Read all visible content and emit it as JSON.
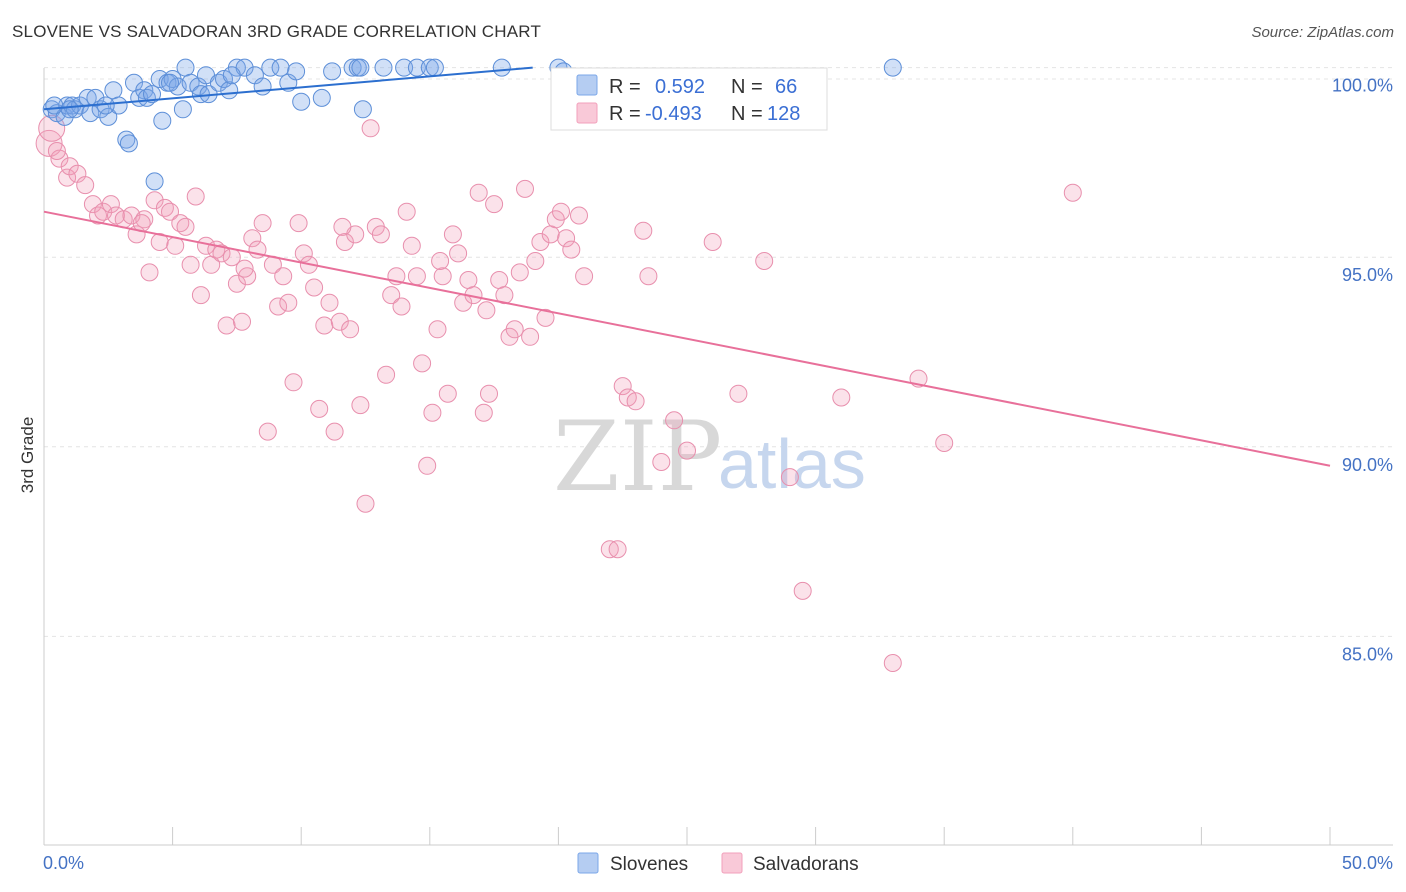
{
  "chart_data": {
    "type": "scatter",
    "title": "SLOVENE VS SALVADORAN 3RD GRADE CORRELATION CHART",
    "source": "Source: ZipAtlas.com",
    "xlabel": "",
    "ylabel": "3rd Grade",
    "xlim": [
      0,
      50
    ],
    "ylim": [
      79.5,
      100.2
    ],
    "x_tick_labels": [
      "0.0%",
      "50.0%"
    ],
    "y_ticks": [
      85,
      90,
      95,
      100
    ],
    "y_tick_labels": [
      "85.0%",
      "90.0%",
      "95.0%",
      "100.0%"
    ],
    "watermark": {
      "zip": "ZIP",
      "atlas": "atlas"
    },
    "colors": {
      "slovenes": "#7ba7e8",
      "slovenes_line": "#2c6fcf",
      "salvadorans": "#f2a0bb",
      "salvadorans_line": "#e8709a",
      "tick": "#4472c4"
    },
    "legend": [
      {
        "r_label": "R =",
        "r_value": "0.592",
        "n_label": "N =",
        "n_value": "66"
      },
      {
        "r_label": "R =",
        "r_value": "-0.493",
        "n_label": "N =",
        "n_value": "128"
      }
    ],
    "series": [
      {
        "name": "Slovenes",
        "trend": {
          "x": [
            0,
            19
          ],
          "y": [
            98.9,
            100.0
          ]
        },
        "points": [
          [
            0.3,
            98.9
          ],
          [
            0.5,
            98.8
          ],
          [
            0.8,
            98.7
          ],
          [
            0.9,
            99.0
          ],
          [
            1.1,
            99.0
          ],
          [
            1.2,
            98.9
          ],
          [
            1.4,
            99.0
          ],
          [
            1.7,
            99.2
          ],
          [
            1.8,
            98.8
          ],
          [
            2.0,
            99.2
          ],
          [
            2.2,
            98.9
          ],
          [
            2.5,
            98.7
          ],
          [
            2.7,
            99.4
          ],
          [
            2.9,
            99.0
          ],
          [
            3.2,
            98.1
          ],
          [
            3.3,
            98.0
          ],
          [
            3.5,
            99.6
          ],
          [
            3.7,
            99.2
          ],
          [
            3.9,
            99.4
          ],
          [
            4.0,
            99.2
          ],
          [
            4.2,
            99.3
          ],
          [
            4.3,
            97.0
          ],
          [
            4.5,
            99.7
          ],
          [
            4.6,
            98.6
          ],
          [
            4.8,
            99.6
          ],
          [
            5.0,
            99.7
          ],
          [
            5.2,
            99.5
          ],
          [
            5.4,
            98.9
          ],
          [
            5.5,
            100.0
          ],
          [
            5.7,
            99.6
          ],
          [
            6.0,
            99.5
          ],
          [
            6.1,
            99.3
          ],
          [
            6.3,
            99.8
          ],
          [
            6.4,
            99.3
          ],
          [
            6.8,
            99.6
          ],
          [
            7.0,
            99.7
          ],
          [
            7.2,
            99.4
          ],
          [
            7.5,
            100.0
          ],
          [
            7.8,
            100.0
          ],
          [
            8.2,
            99.8
          ],
          [
            8.5,
            99.5
          ],
          [
            8.8,
            100.0
          ],
          [
            9.2,
            100.0
          ],
          [
            9.5,
            99.6
          ],
          [
            9.8,
            99.9
          ],
          [
            10.0,
            99.1
          ],
          [
            10.8,
            99.2
          ],
          [
            11.2,
            99.9
          ],
          [
            12.0,
            100.0
          ],
          [
            12.2,
            100.0
          ],
          [
            12.4,
            98.9
          ],
          [
            13.2,
            100.0
          ],
          [
            14.0,
            100.0
          ],
          [
            14.5,
            100.0
          ],
          [
            15.0,
            100.0
          ],
          [
            15.2,
            100.0
          ],
          [
            17.8,
            100.0
          ],
          [
            20.0,
            100.0
          ],
          [
            20.2,
            99.9
          ],
          [
            33.0,
            100.0
          ],
          [
            0.4,
            99.0
          ],
          [
            1.0,
            98.9
          ],
          [
            2.4,
            99.0
          ],
          [
            4.9,
            99.6
          ],
          [
            7.3,
            99.8
          ],
          [
            12.3,
            100.0
          ]
        ]
      },
      {
        "name": "Salvadorans",
        "trend": {
          "x": [
            0,
            50
          ],
          "y": [
            96.2,
            89.5
          ]
        },
        "points": [
          [
            0.2,
            98.0
          ],
          [
            0.3,
            98.4
          ],
          [
            0.6,
            97.6
          ],
          [
            0.9,
            97.1
          ],
          [
            1.0,
            97.4
          ],
          [
            1.3,
            97.2
          ],
          [
            1.6,
            96.9
          ],
          [
            1.9,
            96.4
          ],
          [
            2.1,
            96.1
          ],
          [
            2.3,
            96.2
          ],
          [
            2.6,
            96.4
          ],
          [
            2.8,
            96.1
          ],
          [
            3.1,
            96.0
          ],
          [
            3.4,
            96.1
          ],
          [
            3.6,
            95.6
          ],
          [
            3.9,
            96.0
          ],
          [
            4.1,
            94.6
          ],
          [
            4.3,
            96.5
          ],
          [
            4.5,
            95.4
          ],
          [
            4.7,
            96.3
          ],
          [
            4.9,
            96.2
          ],
          [
            5.1,
            95.3
          ],
          [
            5.3,
            95.9
          ],
          [
            5.5,
            95.8
          ],
          [
            5.7,
            94.8
          ],
          [
            5.9,
            96.6
          ],
          [
            6.1,
            94.0
          ],
          [
            6.3,
            95.3
          ],
          [
            6.5,
            94.8
          ],
          [
            6.7,
            95.2
          ],
          [
            6.9,
            95.1
          ],
          [
            7.1,
            93.2
          ],
          [
            7.3,
            95.0
          ],
          [
            7.5,
            94.3
          ],
          [
            7.7,
            93.3
          ],
          [
            7.9,
            94.5
          ],
          [
            8.1,
            95.5
          ],
          [
            8.3,
            95.2
          ],
          [
            8.5,
            95.9
          ],
          [
            8.7,
            90.4
          ],
          [
            8.9,
            94.8
          ],
          [
            9.1,
            93.7
          ],
          [
            9.3,
            94.5
          ],
          [
            9.5,
            93.8
          ],
          [
            9.7,
            91.7
          ],
          [
            9.9,
            95.9
          ],
          [
            10.1,
            95.1
          ],
          [
            10.3,
            94.8
          ],
          [
            10.5,
            94.2
          ],
          [
            10.7,
            91.0
          ],
          [
            10.9,
            93.2
          ],
          [
            11.1,
            93.8
          ],
          [
            11.3,
            90.4
          ],
          [
            11.5,
            93.3
          ],
          [
            11.7,
            95.4
          ],
          [
            11.9,
            93.1
          ],
          [
            12.1,
            95.6
          ],
          [
            12.3,
            91.1
          ],
          [
            12.5,
            88.5
          ],
          [
            12.7,
            98.4
          ],
          [
            12.9,
            95.8
          ],
          [
            13.1,
            95.6
          ],
          [
            13.3,
            91.9
          ],
          [
            13.5,
            94.0
          ],
          [
            13.7,
            94.5
          ],
          [
            13.9,
            93.7
          ],
          [
            14.1,
            96.2
          ],
          [
            14.3,
            95.3
          ],
          [
            14.5,
            94.5
          ],
          [
            14.7,
            92.2
          ],
          [
            14.9,
            89.5
          ],
          [
            15.1,
            90.9
          ],
          [
            15.3,
            93.1
          ],
          [
            15.5,
            94.5
          ],
          [
            15.7,
            91.4
          ],
          [
            15.9,
            95.6
          ],
          [
            16.1,
            95.1
          ],
          [
            16.3,
            93.8
          ],
          [
            16.5,
            94.4
          ],
          [
            16.7,
            94.0
          ],
          [
            16.9,
            96.7
          ],
          [
            17.1,
            90.9
          ],
          [
            17.3,
            91.4
          ],
          [
            17.5,
            96.4
          ],
          [
            17.7,
            94.4
          ],
          [
            17.9,
            94.0
          ],
          [
            18.1,
            92.9
          ],
          [
            18.3,
            93.1
          ],
          [
            18.5,
            94.6
          ],
          [
            18.7,
            96.8
          ],
          [
            18.9,
            92.9
          ],
          [
            19.1,
            94.9
          ],
          [
            19.3,
            95.4
          ],
          [
            19.5,
            93.4
          ],
          [
            19.7,
            95.6
          ],
          [
            19.9,
            96.0
          ],
          [
            20.1,
            96.2
          ],
          [
            20.3,
            95.5
          ],
          [
            20.5,
            95.2
          ],
          [
            21.0,
            94.5
          ],
          [
            22.0,
            87.3
          ],
          [
            22.3,
            87.3
          ],
          [
            22.5,
            91.6
          ],
          [
            22.7,
            91.3
          ],
          [
            23.0,
            91.2
          ],
          [
            23.3,
            95.7
          ],
          [
            23.5,
            94.5
          ],
          [
            24.0,
            89.6
          ],
          [
            24.5,
            90.7
          ],
          [
            25.0,
            89.9
          ],
          [
            26.0,
            95.4
          ],
          [
            27.0,
            91.4
          ],
          [
            28.0,
            94.9
          ],
          [
            29.0,
            89.2
          ],
          [
            29.5,
            86.2
          ],
          [
            31.0,
            91.3
          ],
          [
            33.0,
            84.3
          ],
          [
            34.0,
            91.8
          ],
          [
            35.0,
            90.1
          ],
          [
            40.0,
            96.7
          ],
          [
            20.8,
            96.1
          ],
          [
            7.8,
            94.7
          ],
          [
            3.8,
            95.9
          ],
          [
            15.4,
            94.9
          ],
          [
            11.6,
            95.8
          ],
          [
            17.2,
            93.6
          ],
          [
            0.5,
            97.8
          ]
        ]
      }
    ]
  }
}
